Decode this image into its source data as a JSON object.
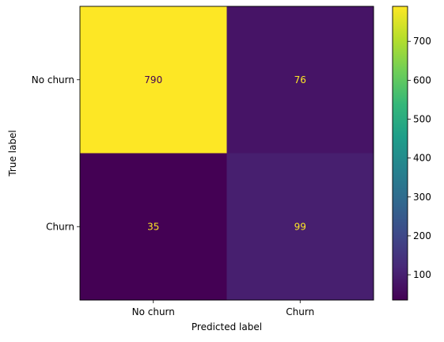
{
  "chart_data": {
    "type": "heatmap",
    "title": "",
    "xlabel": "Predicted label",
    "ylabel": "True label",
    "x_categories": [
      "No churn",
      "Churn"
    ],
    "y_categories": [
      "No churn",
      "Churn"
    ],
    "values": [
      [
        790,
        76
      ],
      [
        35,
        99
      ]
    ],
    "value_labels": [
      [
        "790",
        "76"
      ],
      [
        "35",
        "99"
      ]
    ],
    "colormap": "viridis",
    "colorbar": {
      "min": 35,
      "max": 790,
      "ticks": [
        100,
        200,
        300,
        400,
        500,
        600,
        700
      ],
      "tick_labels": [
        "100",
        "200",
        "300",
        "400",
        "500",
        "600",
        "700"
      ]
    },
    "grid": false,
    "colors": {
      "low_text": "#fde725",
      "high_text": "#440154"
    }
  }
}
